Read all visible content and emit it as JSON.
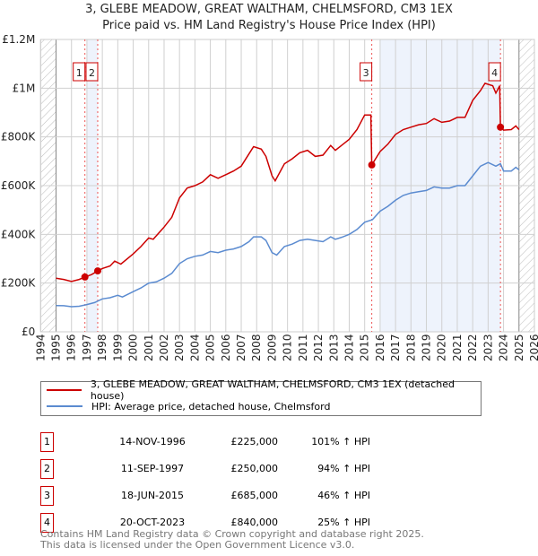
{
  "title": "3, GLEBE MEADOW, GREAT WALTHAM, CHELMSFORD, CM3 1EX",
  "subtitle": "Price paid vs. HM Land Registry's House Price Index (HPI)",
  "colors": {
    "property": "#cc0000",
    "hpi": "#5b8bd0",
    "shade": "#eef3fc"
  },
  "chart_data": {
    "type": "line",
    "ylabel": "",
    "xlabel": "",
    "xlim": [
      1994,
      2026
    ],
    "ylim": [
      0,
      1200000
    ],
    "yticks": [
      {
        "v": 0,
        "label": "£0"
      },
      {
        "v": 200000,
        "label": "£200K"
      },
      {
        "v": 400000,
        "label": "£400K"
      },
      {
        "v": 600000,
        "label": "£600K"
      },
      {
        "v": 800000,
        "label": "£800K"
      },
      {
        "v": 1000000,
        "label": "£1M"
      },
      {
        "v": 1200000,
        "label": "£1.2M"
      }
    ],
    "xticks": [
      "1994",
      "1995",
      "1996",
      "1997",
      "1998",
      "1999",
      "2000",
      "2001",
      "2002",
      "2003",
      "2004",
      "2005",
      "2006",
      "2007",
      "2008",
      "2009",
      "2010",
      "2011",
      "2012",
      "2013",
      "2014",
      "2015",
      "2016",
      "2017",
      "2018",
      "2019",
      "2020",
      "2021",
      "2022",
      "2023",
      "2024",
      "2025",
      "2026"
    ],
    "series": [
      {
        "name": "3, GLEBE MEADOW, GREAT WALTHAM, CHELMSFORD, CM3 1EX (detached house)",
        "color": "#cc0000",
        "x": [
          1995,
          1995.5,
          1996,
          1996.5,
          1996.87,
          1997.3,
          1997.7,
          1998,
          1998.5,
          1998.8,
          1999.2,
          2000,
          2000.5,
          2001,
          2001.3,
          2002,
          2002.5,
          2003,
          2003.5,
          2004,
          2004.5,
          2005,
          2005.5,
          2006,
          2006.5,
          2007,
          2007.5,
          2007.8,
          2008.3,
          2008.6,
          2009,
          2009.2,
          2009.8,
          2010.3,
          2010.8,
          2011.3,
          2011.8,
          2012.3,
          2012.8,
          2013.1,
          2013.6,
          2014,
          2014.5,
          2015,
          2015.4,
          2015.46,
          2016,
          2016.5,
          2017,
          2017.5,
          2018,
          2018.5,
          2019,
          2019.5,
          2020,
          2020.5,
          2021,
          2021.5,
          2022,
          2022.5,
          2022.8,
          2023.3,
          2023.5,
          2023.75,
          2023.8,
          2024,
          2024.5,
          2024.8,
          2025
        ],
        "y": [
          220000,
          215000,
          207000,
          215000,
          225000,
          235000,
          250000,
          260000,
          270000,
          290000,
          278000,
          320000,
          350000,
          385000,
          380000,
          430000,
          470000,
          550000,
          590000,
          600000,
          615000,
          645000,
          630000,
          645000,
          660000,
          680000,
          730000,
          760000,
          750000,
          720000,
          640000,
          620000,
          690000,
          710000,
          735000,
          745000,
          720000,
          725000,
          765000,
          745000,
          770000,
          790000,
          830000,
          890000,
          890000,
          685000,
          740000,
          770000,
          810000,
          830000,
          840000,
          850000,
          855000,
          875000,
          860000,
          865000,
          880000,
          880000,
          950000,
          990000,
          1020000,
          1010000,
          980000,
          1010000,
          840000,
          828000,
          830000,
          845000,
          830000
        ]
      },
      {
        "name": "HPI: Average price, detached house, Chelmsford",
        "color": "#5b8bd0",
        "x": [
          1995,
          1995.5,
          1996,
          1996.5,
          1997,
          1997.5,
          1998,
          1998.5,
          1999,
          1999.3,
          2000,
          2000.5,
          2001,
          2001.5,
          2002,
          2002.5,
          2003,
          2003.5,
          2004,
          2004.5,
          2005,
          2005.5,
          2006,
          2006.5,
          2007,
          2007.5,
          2007.8,
          2008.3,
          2008.6,
          2009,
          2009.3,
          2009.8,
          2010.3,
          2010.8,
          2011.3,
          2011.8,
          2012.3,
          2012.8,
          2013.1,
          2013.6,
          2014,
          2014.5,
          2015,
          2015.5,
          2016,
          2016.5,
          2017,
          2017.5,
          2018,
          2018.5,
          2019,
          2019.5,
          2020,
          2020.5,
          2021,
          2021.5,
          2022,
          2022.5,
          2023,
          2023.5,
          2023.8,
          2024,
          2024.5,
          2024.8,
          2025
        ],
        "y": [
          108000,
          107000,
          103000,
          105000,
          112000,
          120000,
          135000,
          140000,
          150000,
          143000,
          165000,
          180000,
          200000,
          205000,
          220000,
          240000,
          280000,
          300000,
          310000,
          315000,
          330000,
          325000,
          335000,
          340000,
          350000,
          370000,
          390000,
          390000,
          375000,
          325000,
          315000,
          350000,
          360000,
          375000,
          380000,
          375000,
          370000,
          390000,
          380000,
          390000,
          400000,
          420000,
          450000,
          460000,
          495000,
          515000,
          540000,
          560000,
          570000,
          575000,
          580000,
          595000,
          590000,
          590000,
          600000,
          600000,
          640000,
          680000,
          695000,
          680000,
          690000,
          660000,
          660000,
          675000,
          665000
        ]
      }
    ],
    "shaded": [
      [
        1997,
        1997.7
      ],
      [
        2016,
        2023.8
      ]
    ],
    "hatched": [
      [
        1994,
        1995
      ],
      [
        2025,
        2026
      ]
    ],
    "sales": [
      {
        "n": "1",
        "x": 1996.87,
        "y": 225000
      },
      {
        "n": "2",
        "x": 1997.7,
        "y": 250000
      },
      {
        "n": "3",
        "x": 2015.46,
        "y": 685000
      },
      {
        "n": "4",
        "x": 2023.8,
        "y": 840000
      }
    ]
  },
  "legend": [
    "3, GLEBE MEADOW, GREAT WALTHAM, CHELMSFORD, CM3 1EX (detached house)",
    "HPI: Average price, detached house, Chelmsford"
  ],
  "table": [
    {
      "n": "1",
      "date": "14-NOV-1996",
      "price": "£225,000",
      "hpi": "101% ↑ HPI"
    },
    {
      "n": "2",
      "date": "11-SEP-1997",
      "price": "£250,000",
      "hpi": "94% ↑ HPI"
    },
    {
      "n": "3",
      "date": "18-JUN-2015",
      "price": "£685,000",
      "hpi": "46% ↑ HPI"
    },
    {
      "n": "4",
      "date": "20-OCT-2023",
      "price": "£840,000",
      "hpi": "25% ↑ HPI"
    }
  ],
  "footer": [
    "Contains HM Land Registry data © Crown copyright and database right 2025.",
    "This data is licensed under the Open Government Licence v3.0."
  ]
}
